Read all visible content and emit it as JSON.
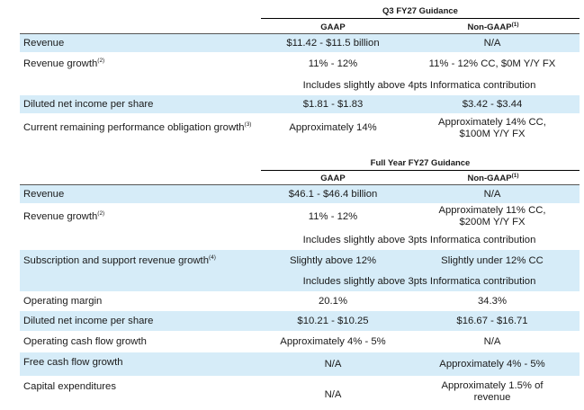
{
  "q3": {
    "title": "Q3 FY27 Guidance",
    "col_gaap": "GAAP",
    "col_nongaap": "Non-GAAP",
    "col_nongaap_sup": "(1)",
    "rows": [
      {
        "label": "Revenue",
        "sup": "",
        "gaap": "$11.42 - $11.5 billion",
        "nongaap": "N/A"
      },
      {
        "label": "Revenue growth",
        "sup": "(2)",
        "gaap": "11% - 12%",
        "nongaap": "11% - 12% CC, $0M Y/Y FX"
      },
      {
        "note": "Includes slightly above 4pts Informatica contribution"
      },
      {
        "label": "Diluted net income per share",
        "sup": "",
        "gaap": "$1.81 - $1.83",
        "nongaap": "$3.42 - $3.44"
      },
      {
        "label": "Current remaining performance obligation growth",
        "sup": "(3)",
        "gaap": "Approximately 14%",
        "nongaap": "Approximately 14% CC,\n$100M Y/Y FX"
      }
    ]
  },
  "fy": {
    "title": "Full Year FY27 Guidance",
    "col_gaap": "GAAP",
    "col_nongaap": "Non-GAAP",
    "col_nongaap_sup": "(1)",
    "rows": [
      {
        "label": "Revenue",
        "sup": "",
        "gaap": "$46.1 - $46.4 billion",
        "nongaap": "N/A"
      },
      {
        "label": "Revenue growth",
        "sup": "(2)",
        "gaap": "11% - 12%",
        "nongaap": "Approximately 11% CC,\n$200M Y/Y FX"
      },
      {
        "note": "Includes slightly above 3pts Informatica contribution"
      },
      {
        "label": "Subscription and support revenue growth",
        "sup": "(4)",
        "gaap": "Slightly above 12%",
        "nongaap": "Slightly under 12% CC"
      },
      {
        "note": "Includes slightly above 3pts Informatica contribution"
      },
      {
        "label": "Operating margin",
        "sup": "",
        "gaap": "20.1%",
        "nongaap": "34.3%"
      },
      {
        "label": "Diluted net income per share",
        "sup": "",
        "gaap": "$10.21 - $10.25",
        "nongaap": "$16.67 - $16.71"
      },
      {
        "label": "Operating cash flow growth",
        "sup": "",
        "gaap": "Approximately 4% - 5%",
        "nongaap": "N/A"
      },
      {
        "label": "Free cash flow growth",
        "sup": "",
        "gaap": "N/A",
        "nongaap": "Approximately 4% - 5%"
      },
      {
        "label": "Capital expenditures",
        "sup": "",
        "gaap": "N/A",
        "nongaap": "Approximately 1.5% of\nrevenue"
      }
    ]
  }
}
